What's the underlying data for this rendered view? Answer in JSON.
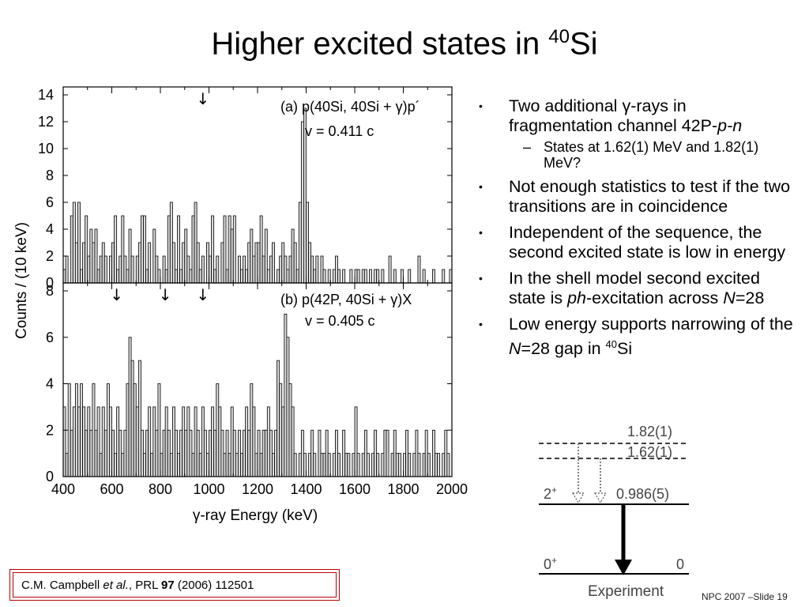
{
  "title": {
    "main": "Higher excited states in ",
    "sup": "40",
    "tail": "Si"
  },
  "bullets": {
    "b1_pre": "Two additional ",
    "b1_gamma": "γ",
    "b1_post": "-rays in fragmentation channel 42P-",
    "b1_it": "p-n",
    "s1": "States at 1.62(1) MeV and 1.82(1) MeV?",
    "b2": "Not enough statistics to test if the two transitions are in coincidence",
    "b3": "Independent of the sequence, the second excited state is low in energy",
    "b4_pre": "In the shell model second excited state is ",
    "b4_it": "ph",
    "b4_mid": "-excitation across ",
    "b4_N": "N",
    "b4_post": "=28",
    "b5_pre": "Low energy supports narrowing of the ",
    "b5_N": "N",
    "b5_post": "=28 gap in ",
    "b5_sup": "40",
    "b5_tail": "Si"
  },
  "citation": {
    "author": "C.M. Campbell ",
    "etal": "et al.",
    "journal": ", PRL ",
    "vol": "97",
    "rest": " (2006) 112501"
  },
  "footer": "NPC 2007 –Slide 19",
  "level_scheme": {
    "state_182": "1.82(1)",
    "state_162": "1.62(1)",
    "spin_2": "2",
    "spin_2_sup": "+",
    "energy_2": "0.986(5)",
    "spin_0": "0",
    "spin_0_sup": "+",
    "energy_0": "0",
    "label": "Experiment"
  },
  "colors": {
    "fill": "#d9d9d9",
    "stroke": "#000000",
    "citation_border": "#c00000"
  },
  "chart_data": [
    {
      "type": "bar",
      "panel": "(a)",
      "annotation": "(a)  p(40Si, 40Si + γ)p´",
      "velocity": "v = 0.411 c",
      "arrows_keV": [
        975
      ],
      "xlabel": "γ-ray Energy (keV)",
      "ylabel": "Counts / (10 keV)",
      "xlim": [
        400,
        2000
      ],
      "ylim": [
        0,
        14
      ],
      "yticks": [
        0,
        2,
        4,
        6,
        8,
        10,
        12,
        14
      ],
      "bin_width_keV": 10,
      "values": [
        1,
        2,
        0,
        5,
        6,
        3,
        6,
        1,
        3,
        5,
        2,
        4,
        3,
        4,
        1,
        2,
        3,
        2,
        0,
        2,
        3,
        5,
        1,
        2,
        5,
        2,
        1,
        4,
        2,
        0,
        2,
        3,
        5,
        5,
        1,
        3,
        0,
        4,
        2,
        1,
        0,
        2,
        1,
        5,
        6,
        3,
        1,
        5,
        1,
        3,
        4,
        2,
        1,
        5,
        6,
        3,
        1,
        2,
        0,
        3,
        2,
        5,
        1,
        2,
        0,
        3,
        5,
        1,
        5,
        4,
        5,
        0,
        2,
        1,
        2,
        1,
        3,
        4,
        2,
        3,
        3,
        5,
        2,
        4,
        1,
        2,
        3,
        0,
        1,
        2,
        3,
        2,
        1,
        2,
        4,
        3,
        1,
        6,
        12,
        13,
        6,
        3,
        2,
        1,
        2,
        0,
        2,
        1,
        0,
        1,
        0,
        1,
        2,
        1,
        0,
        1,
        0,
        0,
        1,
        0,
        1,
        1,
        0,
        1,
        1,
        0,
        1,
        0,
        1,
        1,
        0,
        1,
        0,
        0,
        2,
        0,
        1,
        0,
        0,
        1,
        0,
        0,
        1,
        0,
        0,
        0,
        2,
        0,
        1,
        0,
        0,
        0,
        1,
        0,
        0,
        0,
        1,
        0,
        0,
        1,
        0
      ]
    },
    {
      "type": "bar",
      "panel": "(b)",
      "annotation": "(b)  p(42P, 40Si + γ)X",
      "velocity": "v = 0.405 c",
      "arrows_keV": [
        620,
        820,
        975
      ],
      "xlabel": "γ-ray Energy (keV)",
      "ylabel": "Counts / (10 keV)",
      "xlim": [
        400,
        2000
      ],
      "ylim": [
        0,
        8
      ],
      "yticks": [
        0,
        2,
        4,
        6,
        8
      ],
      "xticks": [
        400,
        600,
        800,
        1000,
        1200,
        1400,
        1600,
        1800,
        2000
      ],
      "bin_width_keV": 10,
      "values": [
        3,
        1,
        4,
        2,
        3,
        4,
        3,
        4,
        3,
        2,
        3,
        2,
        4,
        2,
        3,
        1,
        3,
        2,
        4,
        3,
        2,
        1,
        3,
        2,
        1,
        2,
        4,
        6,
        5,
        4,
        3,
        5,
        2,
        1,
        2,
        3,
        1,
        3,
        2,
        4,
        1,
        2,
        3,
        2,
        1,
        3,
        2,
        1,
        2,
        3,
        2,
        3,
        2,
        1,
        3,
        2,
        1,
        3,
        2,
        1,
        2,
        3,
        2,
        4,
        3,
        2,
        1,
        2,
        1,
        3,
        2,
        1,
        2,
        1,
        2,
        3,
        2,
        4,
        3,
        1,
        2,
        1,
        2,
        2,
        3,
        2,
        1,
        2,
        5,
        4,
        3,
        7,
        6,
        4,
        3,
        1,
        0,
        1,
        2,
        1,
        0,
        1,
        2,
        1,
        0,
        2,
        1,
        1,
        2,
        1,
        0,
        1,
        2,
        1,
        0,
        2,
        1,
        1,
        0,
        1,
        3,
        1,
        0,
        1,
        2,
        1,
        0,
        1,
        2,
        1,
        0,
        1,
        2,
        2,
        0,
        1,
        2,
        1,
        1,
        0,
        1,
        2,
        1,
        0,
        1,
        2,
        1,
        0,
        1,
        2,
        1,
        0,
        2,
        1,
        1,
        0,
        1,
        2,
        1,
        0
      ]
    }
  ]
}
